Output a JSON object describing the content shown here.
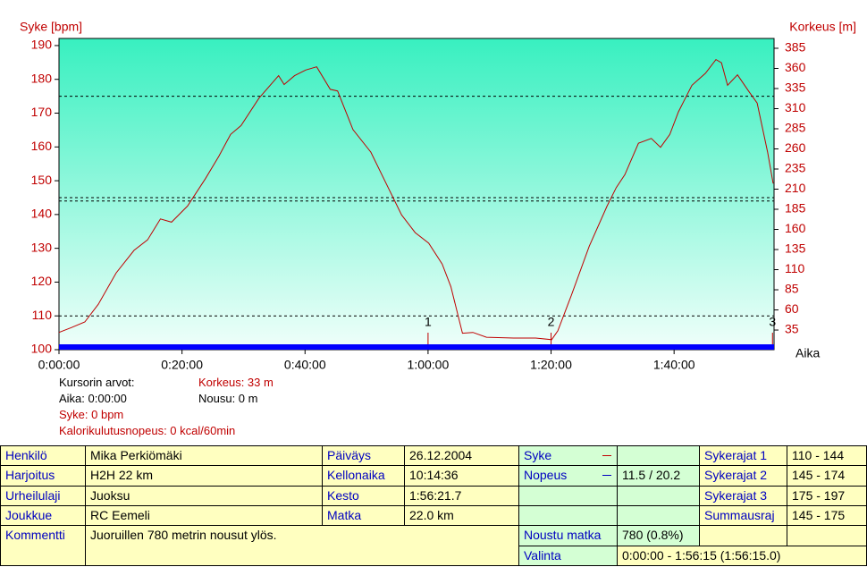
{
  "chart_data": {
    "type": "line",
    "ylabel": "Syke [bpm]",
    "y2label": "Korkeus [m]",
    "xlabel": "Aika",
    "xlim": [
      0,
      116.25
    ],
    "xticks": [
      {
        "value": 0,
        "label": "0:00:00"
      },
      {
        "value": 20,
        "label": "0:20:00"
      },
      {
        "value": 40,
        "label": "0:40:00"
      },
      {
        "value": 60,
        "label": "1:00:00"
      },
      {
        "value": 80,
        "label": "1:20:00"
      },
      {
        "value": 100,
        "label": "1:40:00"
      }
    ],
    "ylim": [
      100,
      192.1
    ],
    "yticks": [
      100,
      110,
      120,
      130,
      140,
      150,
      160,
      170,
      180,
      190
    ],
    "y2lim": [
      10.6,
      397.2
    ],
    "y2ticks": [
      35,
      60,
      85,
      110,
      135,
      160,
      185,
      210,
      235,
      260,
      285,
      310,
      335,
      360,
      385
    ],
    "limit_lines": [
      110,
      144,
      145,
      175
    ],
    "laps": [
      {
        "value": 60,
        "label": "1"
      },
      {
        "value": 80,
        "label": "2"
      },
      {
        "value": 116,
        "label": "3"
      }
    ],
    "x": [
      0,
      2,
      4.2,
      6.4,
      9.3,
      12.2,
      14.4,
      16.5,
      18.3,
      20.9,
      23.8,
      26,
      27.9,
      29.6,
      32.5,
      35.7,
      36.6,
      38.3,
      40.1,
      41.9,
      44.1,
      45.3,
      47.8,
      50.7,
      52.8,
      55.7,
      57.9,
      60.1,
      62.3,
      63.7,
      65.6,
      67.3,
      69.5,
      73.9,
      77.5,
      80.1,
      81.1,
      83.3,
      86.2,
      89.1,
      90.6,
      92,
      94.2,
      96.3,
      97.8,
      99.3,
      100.7,
      102.9,
      105.1,
      106.8,
      107.7,
      108.7,
      110.3,
      112.1,
      113.5,
      115.2,
      116.1
    ],
    "series": [
      {
        "color": "#c00000",
        "axis": "y2",
        "values": [
          32,
          38,
          45,
          67,
          106,
          134,
          147,
          173,
          169,
          189,
          223,
          251,
          278,
          289,
          323,
          351,
          340,
          351,
          358,
          362,
          334,
          332,
          284,
          256,
          223,
          178,
          156,
          143,
          117,
          89,
          31,
          32,
          26,
          25,
          25,
          23,
          34,
          78,
          139,
          189,
          212,
          228,
          267,
          273,
          262,
          278,
          306,
          339,
          354,
          371,
          367,
          339,
          352,
          332,
          317,
          256,
          217
        ]
      }
    ]
  },
  "cursor": {
    "title": "Kursorin arvot:",
    "time": "Aika: 0:00:00",
    "altitude": "Korkeus: 33 m",
    "ascent": "Nousu: 0 m",
    "hr": "Syke: 0 bpm",
    "kcal": "Kalorikulutusnopeus: 0 kcal/60min"
  },
  "table": {
    "rows": [
      [
        "Henkilö",
        "Mika Perkiömäki",
        "Päiväys",
        "26.12.2004",
        "Syke",
        "Sykerajat 1",
        "110 - 144"
      ],
      [
        "Harjoitus",
        "H2H 22 km",
        "Kellonaika",
        "10:14:36",
        "Nopeus",
        "11.5 / 20.2",
        "Sykerajat 2",
        "145 - 174"
      ],
      [
        "Urheilulaji",
        "Juoksu",
        "Kesto",
        "1:56:21.7",
        "Sykerajat 3",
        "175 - 197"
      ],
      [
        "Joukkue",
        "RC Eemeli",
        "Matka",
        "22.0 km",
        "Summausraj",
        "145 - 175"
      ],
      [
        "Kommentti",
        "Juoruillen 780 metrin nousut ylös.",
        "Noustu matka",
        "780 (0.8%)"
      ],
      [
        "Valinta",
        "0:00:00 - 1:56:15 (1:56:15.0)"
      ]
    ]
  }
}
